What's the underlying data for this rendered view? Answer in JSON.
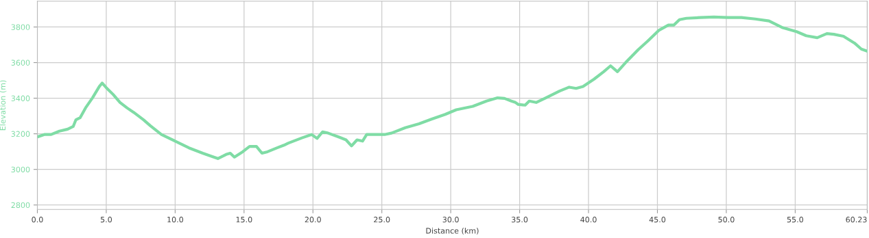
{
  "chart_data": {
    "type": "line",
    "xlabel": "Distance (km)",
    "ylabel": "Elevation (m)",
    "grid": true,
    "marker": "none",
    "line_style": "solid",
    "xlim": [
      0,
      60.23
    ],
    "xticks": [
      {
        "value": 0,
        "label": "0.0"
      },
      {
        "value": 5,
        "label": "5.0"
      },
      {
        "value": 10,
        "label": "10.0"
      },
      {
        "value": 15,
        "label": "15.0"
      },
      {
        "value": 20,
        "label": "20.0"
      },
      {
        "value": 25,
        "label": "25.0"
      },
      {
        "value": 30,
        "label": "30.0"
      },
      {
        "value": 35,
        "label": "35.0"
      },
      {
        "value": 40,
        "label": "40.0"
      },
      {
        "value": 45,
        "label": "45.0"
      },
      {
        "value": 50,
        "label": "50.0"
      },
      {
        "value": 55,
        "label": "55.0"
      },
      60.23
    ],
    "ylim": [
      2775,
      3945
    ],
    "yticks": [
      2800,
      3000,
      3200,
      3400,
      3600,
      3800
    ],
    "x": [
      0.1,
      0.5,
      1.0,
      1.6,
      2.2,
      2.6,
      2.8,
      3.1,
      3.5,
      4.0,
      4.5,
      4.7,
      5.0,
      5.5,
      6.0,
      6.5,
      7.0,
      7.7,
      8.2,
      9.0,
      10.0,
      11.0,
      12.0,
      12.7,
      13.1,
      13.5,
      13.7,
      14.0,
      14.3,
      14.9,
      15.4,
      15.9,
      16.3,
      16.7,
      17.4,
      17.9,
      18.2,
      19.2,
      19.9,
      20.3,
      20.7,
      21.1,
      21.9,
      22.4,
      22.8,
      23.2,
      23.6,
      23.9,
      24.7,
      25.2,
      25.7,
      26.7,
      27.7,
      28.6,
      29.6,
      30.4,
      31.6,
      32.6,
      33.4,
      33.9,
      34.4,
      34.7,
      34.9,
      35.4,
      35.7,
      36.2,
      36.9,
      37.9,
      38.6,
      39.1,
      39.6,
      40.4,
      41.1,
      41.6,
      42.1,
      42.8,
      43.6,
      44.3,
      45.1,
      45.8,
      46.2,
      46.6,
      47.1,
      48.1,
      49.1,
      50.1,
      51.1,
      52.1,
      53.1,
      53.6,
      54.1,
      55.1,
      55.8,
      56.6,
      57.3,
      57.8,
      58.5,
      59.3,
      59.8,
      60.2
    ],
    "series": [
      {
        "color": "#7fdca5",
        "values": [
          3185,
          3196,
          3196,
          3215,
          3226,
          3241,
          3279,
          3290,
          3346,
          3402,
          3466,
          3485,
          3459,
          3421,
          3376,
          3346,
          3320,
          3279,
          3245,
          3196,
          3159,
          3121,
          3091,
          3072,
          3061,
          3076,
          3084,
          3091,
          3069,
          3099,
          3129,
          3129,
          3091,
          3099,
          3121,
          3136,
          3147,
          3177,
          3196,
          3174,
          3211,
          3204,
          3181,
          3166,
          3132,
          3166,
          3159,
          3196,
          3196,
          3196,
          3204,
          3234,
          3256,
          3282,
          3309,
          3335,
          3354,
          3384,
          3402,
          3399,
          3384,
          3376,
          3365,
          3361,
          3384,
          3376,
          3402,
          3440,
          3462,
          3455,
          3466,
          3507,
          3549,
          3582,
          3549,
          3609,
          3672,
          3721,
          3781,
          3811,
          3811,
          3841,
          3849,
          3853,
          3856,
          3853,
          3853,
          3845,
          3834,
          3815,
          3796,
          3774,
          3751,
          3740,
          3763,
          3759,
          3748,
          3710,
          3676,
          3665
        ]
      }
    ]
  }
}
